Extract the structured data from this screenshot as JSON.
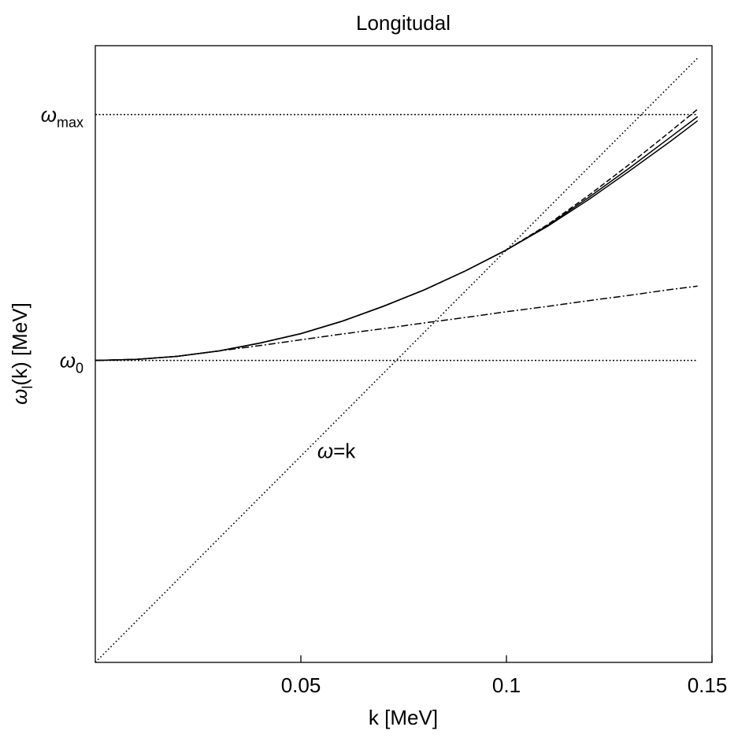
{
  "chart_data": {
    "type": "line",
    "title": "Longitudal",
    "xlabel": "k [MeV]",
    "ylabel": "ω_l(k) [MeV]",
    "xlim": [
      0,
      0.15
    ],
    "ylim": [
      0,
      0.1495
    ],
    "x_ticks": [
      0.05,
      0.1,
      0.15
    ],
    "x_tick_labels": [
      "0.05",
      "0.1",
      "0.15"
    ],
    "y_reference_lines": [
      {
        "symbol": "ω",
        "subscript": "max",
        "y": 0.1328
      },
      {
        "symbol": "ω",
        "subscript": "0",
        "y": 0.0732
      }
    ],
    "annotations": [
      {
        "text": "ω=k",
        "x": 0.054,
        "y": 0.0495
      }
    ],
    "grid": false,
    "legend": "none",
    "series": [
      {
        "style": "solid",
        "points": [
          [
            0,
            0.0732
          ],
          [
            0.01,
            0.07345
          ],
          [
            0.02,
            0.0742
          ],
          [
            0.03,
            0.0755
          ],
          [
            0.04,
            0.0774
          ],
          [
            0.05,
            0.0797
          ],
          [
            0.06,
            0.0827
          ],
          [
            0.07,
            0.0863
          ],
          [
            0.08,
            0.0903
          ],
          [
            0.09,
            0.0949
          ],
          [
            0.1,
            0.1
          ],
          [
            0.11,
            0.1057
          ],
          [
            0.12,
            0.1122
          ],
          [
            0.13,
            0.1192
          ],
          [
            0.14,
            0.1264
          ],
          [
            0.1465,
            0.1313
          ]
        ]
      },
      {
        "style": "solid",
        "points": [
          [
            0,
            0.0732
          ],
          [
            0.01,
            0.07345
          ],
          [
            0.02,
            0.0742
          ],
          [
            0.03,
            0.0755
          ],
          [
            0.04,
            0.0774
          ],
          [
            0.05,
            0.0797
          ],
          [
            0.06,
            0.0827
          ],
          [
            0.07,
            0.0863
          ],
          [
            0.08,
            0.0903
          ],
          [
            0.09,
            0.0949
          ],
          [
            0.1,
            0.1
          ],
          [
            0.11,
            0.1059
          ],
          [
            0.12,
            0.1127
          ],
          [
            0.13,
            0.1199
          ],
          [
            0.14,
            0.1274
          ],
          [
            0.1465,
            0.1323
          ]
        ]
      },
      {
        "style": "dashed",
        "points": [
          [
            0,
            0.0732
          ],
          [
            0.01,
            0.07345
          ],
          [
            0.02,
            0.0742
          ],
          [
            0.03,
            0.0755
          ],
          [
            0.04,
            0.0774
          ],
          [
            0.05,
            0.0797
          ],
          [
            0.06,
            0.0827
          ],
          [
            0.07,
            0.0863
          ],
          [
            0.08,
            0.0903
          ],
          [
            0.09,
            0.0949
          ],
          [
            0.1,
            0.1
          ],
          [
            0.11,
            0.1061
          ],
          [
            0.12,
            0.1132
          ],
          [
            0.13,
            0.1208
          ],
          [
            0.14,
            0.1288
          ],
          [
            0.1465,
            0.1341
          ]
        ]
      },
      {
        "style": "dashdot",
        "points": [
          [
            0,
            0.0732
          ],
          [
            0.01,
            0.07345
          ],
          [
            0.02,
            0.0742
          ],
          [
            0.03,
            0.0755
          ],
          [
            0.04,
            0.0768
          ],
          [
            0.05,
            0.0782
          ],
          [
            0.06,
            0.0796
          ],
          [
            0.07,
            0.0809
          ],
          [
            0.08,
            0.0823
          ],
          [
            0.09,
            0.0836
          ],
          [
            0.1,
            0.085
          ],
          [
            0.11,
            0.0863
          ],
          [
            0.12,
            0.0877
          ],
          [
            0.13,
            0.089
          ],
          [
            0.14,
            0.0904
          ],
          [
            0.1465,
            0.0912
          ]
        ]
      },
      {
        "style": "dotted",
        "points": [
          [
            0,
            0
          ],
          [
            0.1465,
            0.1465
          ]
        ]
      }
    ]
  }
}
